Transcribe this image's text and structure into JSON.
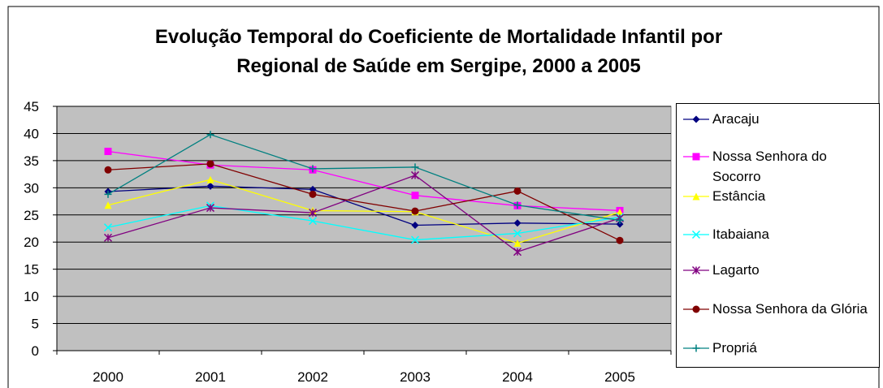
{
  "chart_data": {
    "type": "line",
    "title": "Evolução Temporal do Coeficiente de Mortalidade Infantil por Regional de Saúde em Sergipe, 2000 a 2005",
    "categories": [
      "2000",
      "2001",
      "2002",
      "2003",
      "2004",
      "2005"
    ],
    "ylim": [
      0,
      45
    ],
    "yticks": [
      0,
      5,
      10,
      15,
      20,
      25,
      30,
      35,
      40,
      45
    ],
    "grid": true,
    "series": [
      {
        "name": "Aracaju",
        "color": "#000080",
        "marker": "diamond",
        "values": [
          29.3,
          30.3,
          29.7,
          23.1,
          23.5,
          23.3
        ]
      },
      {
        "name": "Nossa Senhora do Socorro",
        "color": "#ff00ff",
        "marker": "square",
        "values": [
          36.7,
          34.2,
          33.3,
          28.6,
          26.7,
          25.8
        ]
      },
      {
        "name": "Estância",
        "color": "#ffff00",
        "marker": "triangle",
        "values": [
          26.8,
          31.5,
          25.8,
          25.6,
          19.8,
          25.5
        ]
      },
      {
        "name": "Itabaiana",
        "color": "#00ffff",
        "marker": "x",
        "values": [
          22.7,
          26.7,
          23.9,
          20.4,
          21.6,
          24.6
        ]
      },
      {
        "name": "Lagarto",
        "color": "#800080",
        "marker": "star",
        "values": [
          20.8,
          26.3,
          25.4,
          32.3,
          18.2,
          24.4
        ]
      },
      {
        "name": "Nossa Senhora da Glória",
        "color": "#800000",
        "marker": "circle",
        "values": [
          33.3,
          34.4,
          28.8,
          25.7,
          29.4,
          20.3
        ]
      },
      {
        "name": "Propriá",
        "color": "#008080",
        "marker": "plus",
        "values": [
          28.8,
          39.8,
          33.5,
          33.8,
          26.8,
          24.0
        ]
      }
    ]
  }
}
